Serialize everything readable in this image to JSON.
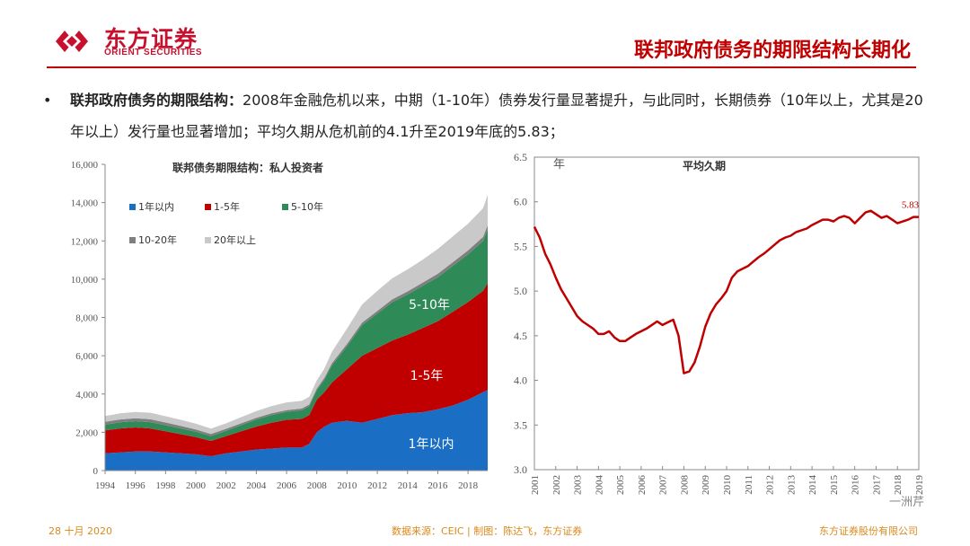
{
  "header": {
    "brand_cn": "东方证券",
    "brand_en": "ORIENT SECURITIES",
    "title": "联邦政府债务的期限结构长期化",
    "accent_color": "#c00000"
  },
  "bullet": {
    "heading": "联邦政府债务的期限结构：",
    "body": "2008年金融危机以来，中期（1-10年）债券发行量显著提升，与此同时，长期债券（10年以上，尤其是20年以上）发行量也显著增加；平均久期从危机前的4.1升至2019年底的5.83；"
  },
  "footer": {
    "date": "28 十月 2020",
    "source": "数据来源：CEIC | 制图：陈达飞，东方证券",
    "company": "东方证券股份有限公司",
    "watermark": "一洲芹"
  },
  "chart_data": [
    {
      "type": "area",
      "stacked": true,
      "title": "联邦债务期限结构：私人投资者",
      "xlabel": "",
      "ylabel": "",
      "x_tick_labels": [
        "1994",
        "1996",
        "1998",
        "2000",
        "2002",
        "2004",
        "2006",
        "2008",
        "2010",
        "2012",
        "2014",
        "2016",
        "2018"
      ],
      "y_tick_labels": [
        "0",
        "2,000",
        "4,000",
        "6,000",
        "8,000",
        "10,000",
        "12,000",
        "14,000",
        "16,000"
      ],
      "xlim": [
        1994,
        2019.3
      ],
      "ylim": [
        0,
        16000
      ],
      "legend_position": "top-left",
      "x": [
        1994,
        1995,
        1996,
        1997,
        1998,
        1999,
        2000,
        2001,
        2002,
        2003,
        2004,
        2005,
        2006,
        2007,
        2007.5,
        2008,
        2008.5,
        2009,
        2010,
        2011,
        2012,
        2013,
        2014,
        2015,
        2016,
        2017,
        2018,
        2019,
        2019.3
      ],
      "series": [
        {
          "name": "1年以内",
          "color": "#1a6fc4",
          "values": [
            900,
            950,
            1000,
            1000,
            950,
            900,
            850,
            750,
            900,
            1000,
            1100,
            1150,
            1200,
            1200,
            1400,
            2000,
            2300,
            2500,
            2600,
            2500,
            2700,
            2900,
            3000,
            3050,
            3200,
            3400,
            3700,
            4100,
            4200
          ]
        },
        {
          "name": "1-5年",
          "color": "#c00000",
          "values": [
            1200,
            1250,
            1250,
            1200,
            1100,
            1000,
            900,
            800,
            900,
            1050,
            1200,
            1350,
            1450,
            1500,
            1500,
            1700,
            1800,
            2100,
            2700,
            3500,
            3700,
            3900,
            4100,
            4400,
            4600,
            4900,
            5100,
            5300,
            5600
          ]
        },
        {
          "name": "5-10年",
          "color": "#2e8b57",
          "values": [
            300,
            320,
            330,
            330,
            320,
            300,
            280,
            250,
            280,
            320,
            360,
            400,
            420,
            450,
            460,
            500,
            650,
            900,
            1200,
            1600,
            1800,
            2000,
            2100,
            2200,
            2300,
            2400,
            2500,
            2600,
            2800
          ]
        },
        {
          "name": "10-20年",
          "color": "#7f7f7f",
          "values": [
            150,
            150,
            150,
            150,
            140,
            130,
            120,
            110,
            100,
            100,
            100,
            90,
            90,
            90,
            90,
            90,
            100,
            110,
            120,
            130,
            140,
            150,
            160,
            170,
            180,
            190,
            200,
            210,
            220
          ]
        },
        {
          "name": "20年以上",
          "color": "#c9c9c9",
          "values": [
            300,
            320,
            330,
            340,
            330,
            320,
            300,
            280,
            290,
            320,
            350,
            380,
            400,
            400,
            400,
            420,
            480,
            600,
            800,
            950,
            1050,
            1100,
            1150,
            1200,
            1300,
            1350,
            1400,
            1500,
            1600
          ]
        }
      ],
      "annotations": [
        "5-10年",
        "1-5年",
        "1年以内"
      ]
    },
    {
      "type": "line",
      "title": "平均久期",
      "ylabel": "年",
      "y_tick_labels": [
        "3.0",
        "3.5",
        "4.0",
        "4.5",
        "5.0",
        "5.5",
        "6.0",
        "6.5"
      ],
      "x_tick_labels": [
        "2001",
        "2002",
        "2003",
        "2004",
        "2005",
        "2006",
        "2007",
        "2008",
        "2009",
        "2010",
        "2011",
        "2012",
        "2013",
        "2014",
        "2015",
        "2016",
        "2017",
        "2018",
        "2019"
      ],
      "xlim": [
        2001,
        2019
      ],
      "ylim": [
        3.0,
        6.5
      ],
      "grid": false,
      "line_color": "#c00000",
      "end_label": "5.83",
      "series": [
        {
          "name": "平均久期",
          "x": [
            2001,
            2001.25,
            2001.5,
            2001.75,
            2002,
            2002.25,
            2002.5,
            2002.75,
            2003,
            2003.25,
            2003.5,
            2003.75,
            2004,
            2004.25,
            2004.5,
            2004.75,
            2005,
            2005.25,
            2005.5,
            2005.75,
            2006,
            2006.25,
            2006.5,
            2006.75,
            2007,
            2007.25,
            2007.5,
            2007.75,
            2008,
            2008.25,
            2008.5,
            2008.75,
            2009,
            2009.25,
            2009.5,
            2009.75,
            2010,
            2010.25,
            2010.5,
            2010.75,
            2011,
            2011.25,
            2011.5,
            2011.75,
            2012,
            2012.25,
            2012.5,
            2012.75,
            2013,
            2013.25,
            2013.5,
            2013.75,
            2014,
            2014.25,
            2014.5,
            2014.75,
            2015,
            2015.25,
            2015.5,
            2015.75,
            2016,
            2016.25,
            2016.5,
            2016.75,
            2017,
            2017.25,
            2017.5,
            2017.75,
            2018,
            2018.25,
            2018.5,
            2018.75,
            2019
          ],
          "values": [
            5.72,
            5.6,
            5.42,
            5.3,
            5.15,
            5.02,
            4.92,
            4.82,
            4.72,
            4.66,
            4.62,
            4.58,
            4.52,
            4.52,
            4.55,
            4.48,
            4.44,
            4.44,
            4.48,
            4.52,
            4.55,
            4.58,
            4.62,
            4.66,
            4.62,
            4.65,
            4.68,
            4.5,
            4.08,
            4.1,
            4.2,
            4.38,
            4.6,
            4.75,
            4.85,
            4.92,
            5.0,
            5.15,
            5.22,
            5.25,
            5.28,
            5.33,
            5.38,
            5.42,
            5.47,
            5.52,
            5.57,
            5.6,
            5.62,
            5.66,
            5.68,
            5.7,
            5.74,
            5.77,
            5.8,
            5.8,
            5.78,
            5.82,
            5.84,
            5.82,
            5.76,
            5.82,
            5.88,
            5.9,
            5.86,
            5.82,
            5.84,
            5.8,
            5.76,
            5.78,
            5.8,
            5.83,
            5.83
          ]
        }
      ]
    }
  ]
}
